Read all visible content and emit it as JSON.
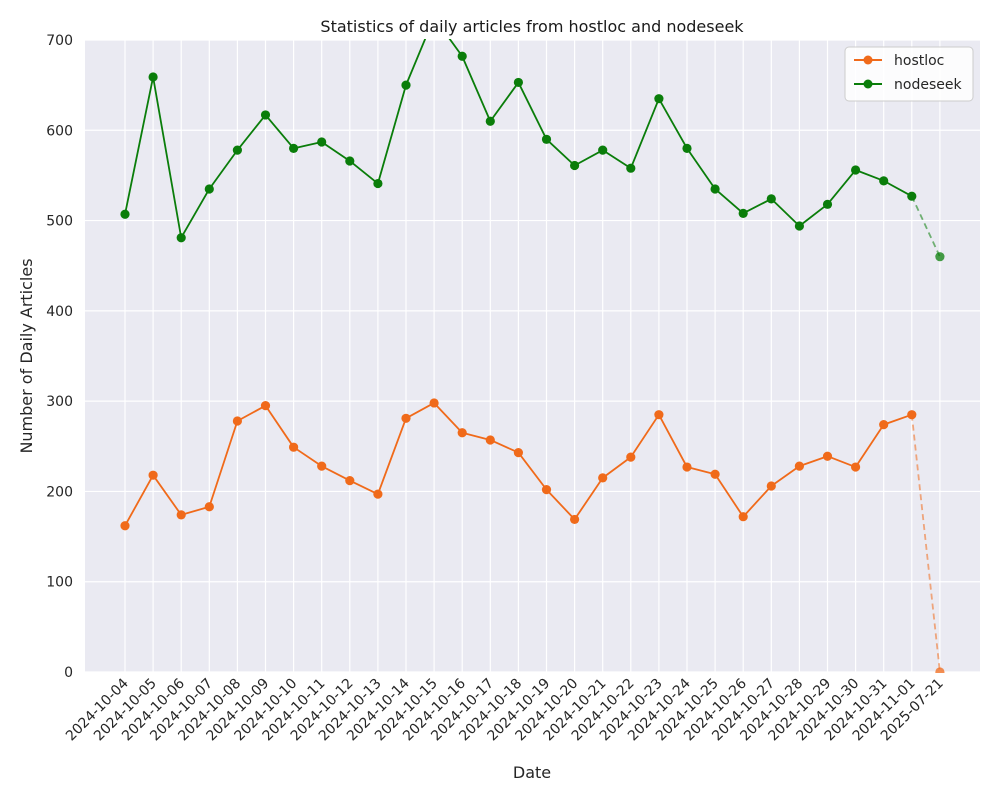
{
  "chart_data": {
    "type": "line",
    "title": "Statistics of daily articles from hostloc and nodeseek",
    "xlabel": "Date",
    "ylabel": "Number of Daily Articles",
    "ylim": [
      0,
      700
    ],
    "yticks": [
      0,
      100,
      200,
      300,
      400,
      500,
      600,
      700
    ],
    "grid": true,
    "legend_position": "top-right",
    "categories": [
      "2024-10-04",
      "2024-10-05",
      "2024-10-06",
      "2024-10-07",
      "2024-10-08",
      "2024-10-09",
      "2024-10-10",
      "2024-10-11",
      "2024-10-12",
      "2024-10-13",
      "2024-10-14",
      "2024-10-15",
      "2024-10-16",
      "2024-10-17",
      "2024-10-18",
      "2024-10-19",
      "2024-10-20",
      "2024-10-21",
      "2024-10-22",
      "2024-10-23",
      "2024-10-24",
      "2024-10-25",
      "2024-10-26",
      "2024-10-27",
      "2024-10-28",
      "2024-10-29",
      "2024-10-30",
      "2024-10-31",
      "2024-11-01",
      "2025-07-21"
    ],
    "series": [
      {
        "name": "hostloc",
        "color": "#f06a1a",
        "dashed_last_segment": true,
        "values": [
          162,
          218,
          174,
          183,
          278,
          295,
          249,
          228,
          212,
          197,
          281,
          298,
          265,
          257,
          243,
          202,
          169,
          215,
          238,
          285,
          227,
          219,
          172,
          206,
          228,
          239,
          227,
          274,
          285,
          0
        ]
      },
      {
        "name": "nodeseek",
        "color": "#0a7d0a",
        "dashed_last_segment": true,
        "values": [
          507,
          659,
          481,
          535,
          578,
          617,
          580,
          587,
          566,
          541,
          650,
          725,
          682,
          610,
          653,
          590,
          561,
          578,
          558,
          635,
          580,
          535,
          508,
          524,
          494,
          518,
          556,
          544,
          527,
          460
        ]
      }
    ]
  }
}
